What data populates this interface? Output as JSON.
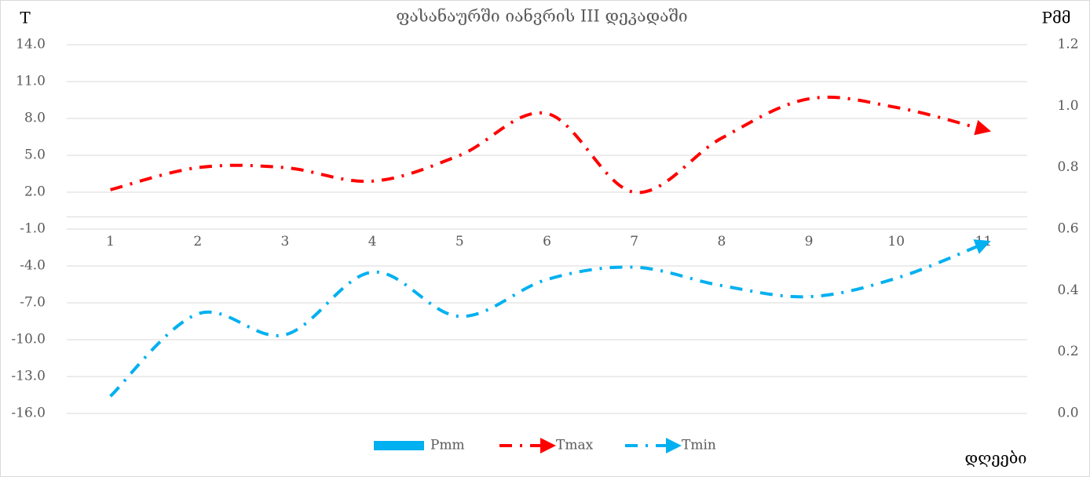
{
  "chart_data": {
    "type": "line",
    "title": "ფასანაურში  იანვრის III დეკადაში",
    "y_label": "T",
    "y2_label": "Pმმ",
    "x_label": "დღეები",
    "categories": [
      "1",
      "2",
      "3",
      "4",
      "5",
      "6",
      "7",
      "8",
      "9",
      "10",
      "11"
    ],
    "series": [
      {
        "name": "Pmm",
        "type": "bar",
        "axis": "y2",
        "color": "#00b0f0",
        "values": [
          0,
          0,
          0,
          0,
          0,
          0,
          0,
          0,
          0,
          0,
          0
        ]
      },
      {
        "name": "Tmax",
        "color": "#ff0000",
        "values": [
          2.2,
          4.0,
          4.0,
          2.9,
          5.0,
          8.4,
          2.0,
          6.4,
          9.6,
          8.9,
          7.1
        ]
      },
      {
        "name": "Tmin",
        "color": "#00b0f0",
        "values": [
          -14.6,
          -7.9,
          -9.6,
          -4.5,
          -8.1,
          -5.1,
          -4.1,
          -5.6,
          -6.5,
          -5.0,
          -2.2
        ]
      }
    ],
    "ylim": [
      -16,
      14
    ],
    "yticks": [
      {
        "value": -16,
        "label": "-16.0"
      },
      {
        "value": -13,
        "label": "-13.0"
      },
      {
        "value": -10,
        "label": "-10.0"
      },
      {
        "value": -7,
        "label": "-7.0"
      },
      {
        "value": -4,
        "label": "-4.0"
      },
      {
        "value": -1,
        "label": "-1.0"
      },
      {
        "value": 2,
        "label": "2.0"
      },
      {
        "value": 5,
        "label": "5.0"
      },
      {
        "value": 8,
        "label": "8.0"
      },
      {
        "value": 11,
        "label": "11.0"
      },
      {
        "value": 14,
        "label": "14.0"
      }
    ],
    "y2lim": [
      0,
      1.2
    ],
    "y2ticks": [
      {
        "value": 0,
        "label": "0.0"
      },
      0.2,
      0.4,
      0.6,
      0.8,
      {
        "value": 1,
        "label": "1.0"
      },
      1.2
    ],
    "grid": true,
    "legend": "bottom"
  }
}
